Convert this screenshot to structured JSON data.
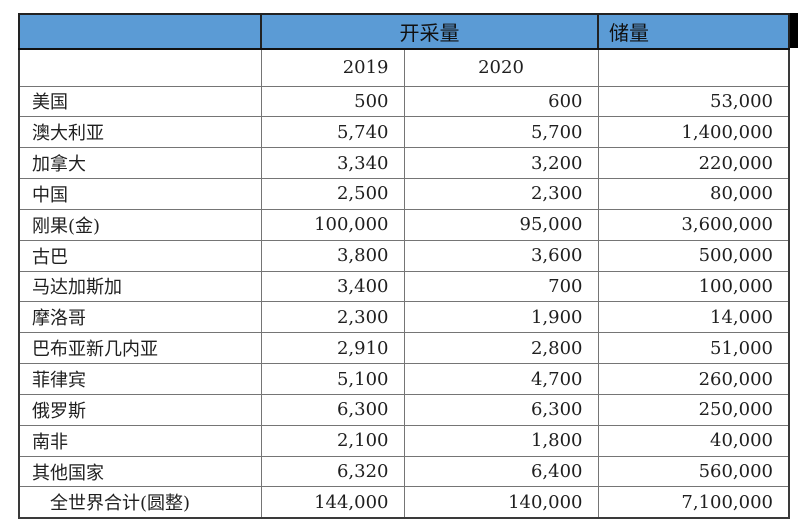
{
  "table": {
    "header": {
      "production_label": "开采量",
      "reserves_label": "储量",
      "year_2019": "2019",
      "year_2020": "2020"
    },
    "rows": [
      {
        "country": "美国",
        "y2019": "500",
        "y2020": "600",
        "reserves": "53,000"
      },
      {
        "country": "澳大利亚",
        "y2019": "5,740",
        "y2020": "5,700",
        "reserves": "1,400,000"
      },
      {
        "country": "加拿大",
        "y2019": "3,340",
        "y2020": "3,200",
        "reserves": "220,000"
      },
      {
        "country": "中国",
        "y2019": "2,500",
        "y2020": "2,300",
        "reserves": "80,000"
      },
      {
        "country": "刚果(金)",
        "y2019": "100,000",
        "y2020": "95,000",
        "reserves": "3,600,000"
      },
      {
        "country": "古巴",
        "y2019": "3,800",
        "y2020": "3,600",
        "reserves": "500,000"
      },
      {
        "country": "马达加斯加",
        "y2019": "3,400",
        "y2020": "700",
        "reserves": "100,000"
      },
      {
        "country": "摩洛哥",
        "y2019": "2,300",
        "y2020": "1,900",
        "reserves": "14,000"
      },
      {
        "country": "巴布亚新几内亚",
        "y2019": "2,910",
        "y2020": "2,800",
        "reserves": "51,000"
      },
      {
        "country": "菲律宾",
        "y2019": "5,100",
        "y2020": "4,700",
        "reserves": "260,000"
      },
      {
        "country": "俄罗斯",
        "y2019": "6,300",
        "y2020": "6,300",
        "reserves": "250,000"
      },
      {
        "country": "南非",
        "y2019": "2,100",
        "y2020": "1,800",
        "reserves": "40,000"
      },
      {
        "country": "其他国家",
        "y2019": "6,320",
        "y2020": "6,400",
        "reserves": "560,000"
      }
    ],
    "total_row": {
      "label": "全世界合计(圆整)",
      "y2019": "144,000",
      "y2020": "140,000",
      "reserves": "7,100,000"
    }
  },
  "colors": {
    "header_bg": "#5b9bd5",
    "grid_line": "#757575",
    "outer_border": "#3a3a3a",
    "text": "#1f1f1f",
    "edge_fragment": "#000000"
  }
}
